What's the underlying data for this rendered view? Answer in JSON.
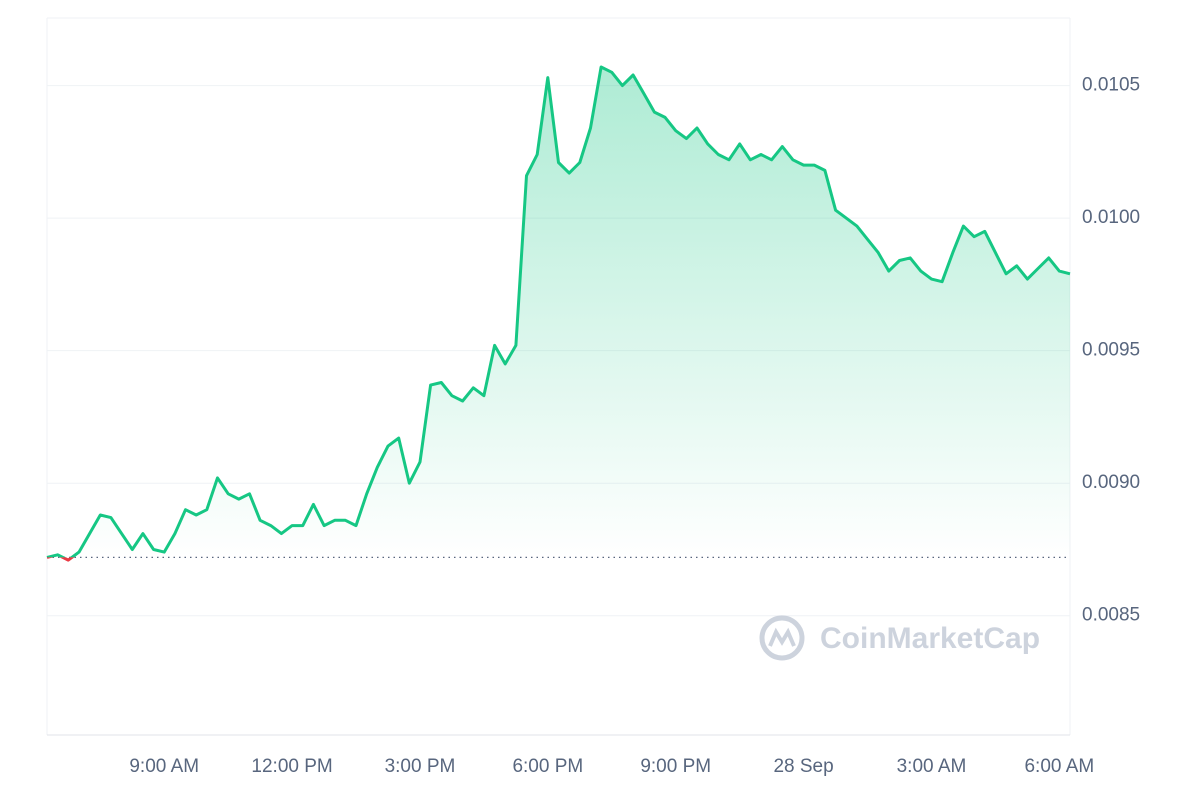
{
  "chart_data": {
    "type": "line",
    "watermark": "CoinMarketCap",
    "color": "#16c784",
    "down_color": "#ea3943",
    "baseline": 0.00872,
    "grid": true,
    "categories": [
      null,
      null,
      null,
      null,
      null,
      null,
      null,
      null,
      null,
      null,
      null,
      "9:00 AM",
      null,
      null,
      null,
      null,
      null,
      null,
      null,
      null,
      null,
      null,
      null,
      "12:00 PM",
      null,
      null,
      null,
      null,
      null,
      null,
      null,
      null,
      null,
      null,
      null,
      "3:00 PM",
      null,
      null,
      null,
      null,
      null,
      null,
      null,
      null,
      null,
      null,
      null,
      "6:00 PM",
      null,
      null,
      null,
      null,
      null,
      null,
      null,
      null,
      null,
      null,
      null,
      "9:00 PM",
      null,
      null,
      null,
      null,
      null,
      null,
      null,
      null,
      null,
      null,
      null,
      "28 Sep",
      null,
      null,
      null,
      null,
      null,
      null,
      null,
      null,
      null,
      null,
      null,
      "3:00 AM",
      null,
      null,
      null,
      null,
      null,
      null,
      null,
      null,
      null,
      null,
      null,
      "6:00 AM",
      null
    ],
    "values": [
      0.00872,
      0.00873,
      0.00871,
      0.00874,
      0.00881,
      0.00888,
      0.00887,
      0.00881,
      0.00875,
      0.00881,
      0.00875,
      0.00874,
      0.00881,
      0.0089,
      0.00888,
      0.0089,
      0.00902,
      0.00896,
      0.00894,
      0.00896,
      0.00886,
      0.00884,
      0.00881,
      0.00884,
      0.00884,
      0.00892,
      0.00884,
      0.00886,
      0.00886,
      0.00884,
      0.00896,
      0.00906,
      0.00914,
      0.00917,
      0.009,
      0.00908,
      0.00937,
      0.00938,
      0.00933,
      0.00931,
      0.00936,
      0.00933,
      0.00952,
      0.00945,
      0.00952,
      0.01016,
      0.01024,
      0.01053,
      0.01021,
      0.01017,
      0.01021,
      0.01034,
      0.01057,
      0.01055,
      0.0105,
      0.01054,
      0.01047,
      0.0104,
      0.01038,
      0.01033,
      0.0103,
      0.01034,
      0.01028,
      0.01024,
      0.01022,
      0.01028,
      0.01022,
      0.01024,
      0.01022,
      0.01027,
      0.01022,
      0.0102,
      0.0102,
      0.01018,
      0.01003,
      0.01,
      0.00997,
      0.00992,
      0.00987,
      0.0098,
      0.00984,
      0.00985,
      0.0098,
      0.00977,
      0.00976,
      0.00987,
      0.00997,
      0.00993,
      0.00995,
      0.00987,
      0.00979,
      0.00982,
      0.00977,
      0.00981,
      0.00985,
      0.0098,
      0.00979
    ],
    "ylim": [
      0.00805,
      0.010755
    ],
    "yticks": [
      0.0085,
      {
        "value": 0.009,
        "label": "0.0090"
      },
      0.0095,
      {
        "value": 0.01,
        "label": "0.0100"
      },
      0.0105
    ]
  }
}
